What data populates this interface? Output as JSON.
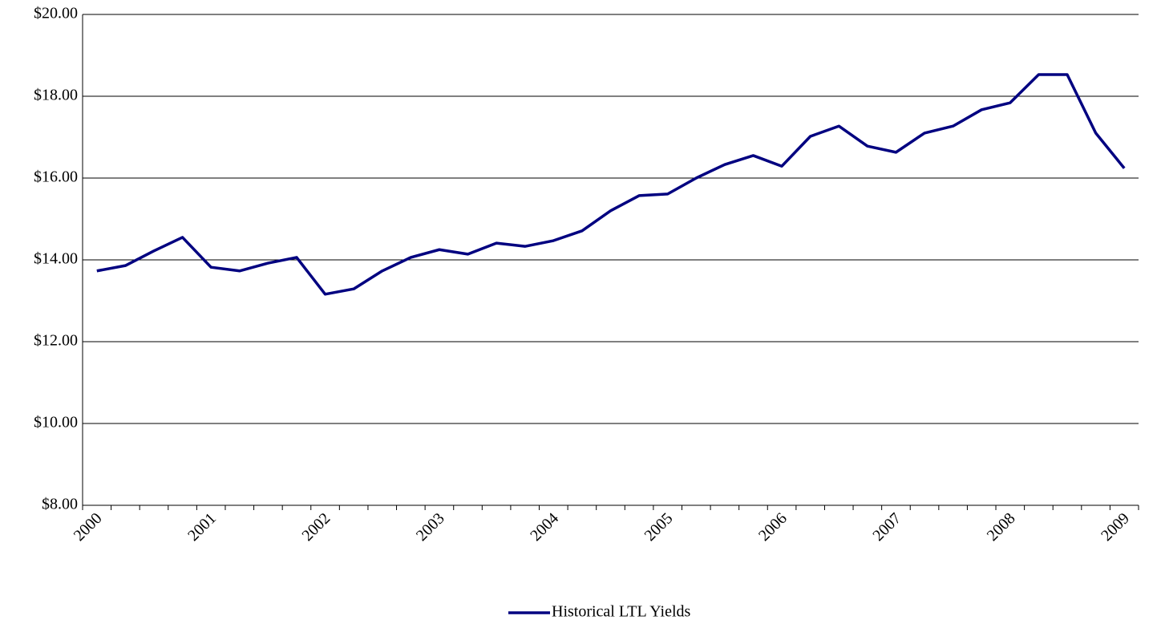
{
  "chart_data": {
    "type": "line",
    "categories": [
      "2000",
      null,
      null,
      null,
      "2001",
      null,
      null,
      null,
      "2002",
      null,
      null,
      null,
      "2003",
      null,
      null,
      null,
      "2004",
      null,
      null,
      null,
      "2005",
      null,
      null,
      null,
      "2006",
      null,
      null,
      null,
      "2007",
      null,
      null,
      null,
      "2008",
      null,
      null,
      null,
      "2009"
    ],
    "series": [
      {
        "name": "Historical LTL Yields",
        "color": "#000080",
        "values": [
          13.73,
          13.86,
          14.22,
          14.55,
          13.82,
          13.73,
          13.92,
          14.06,
          13.16,
          13.29,
          13.73,
          14.06,
          14.25,
          14.14,
          14.41,
          14.33,
          14.47,
          14.71,
          15.2,
          15.57,
          15.61,
          16.0,
          16.33,
          16.55,
          16.29,
          17.02,
          17.27,
          16.78,
          16.63,
          17.1,
          17.27,
          17.67,
          17.84,
          18.53,
          18.53,
          17.1,
          16.24
        ]
      }
    ],
    "ylim": [
      8,
      20
    ],
    "yticks": [
      {
        "value": 8,
        "label": "$8.00"
      },
      {
        "value": 10,
        "label": "$10.00"
      },
      {
        "value": 12,
        "label": "$12.00"
      },
      {
        "value": 14,
        "label": "$14.00"
      },
      {
        "value": 16,
        "label": "$16.00"
      },
      {
        "value": 18,
        "label": "$18.00"
      },
      {
        "value": 20,
        "label": "$20.00"
      }
    ],
    "grid": true,
    "legend": "bottom"
  }
}
